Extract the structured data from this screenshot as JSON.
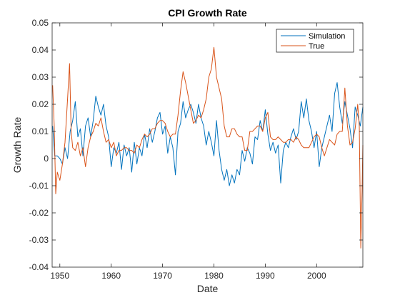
{
  "chart_data": {
    "type": "line",
    "title": "CPI Growth Rate",
    "xlabel": "Date",
    "ylabel": "Growth Rate",
    "xlim": [
      1948.5,
      2009.0
    ],
    "ylim": [
      -0.04,
      0.05
    ],
    "x_ticks": [
      1950,
      1960,
      1970,
      1980,
      1990,
      2000
    ],
    "y_ticks": [
      -0.04,
      -0.03,
      -0.02,
      -0.01,
      0,
      0.01,
      0.02,
      0.03,
      0.04,
      0.05
    ],
    "y_tick_labels": [
      "-0.04",
      "-0.03",
      "-0.02",
      "-0.01",
      "0",
      "0.01",
      "0.02",
      "0.03",
      "0.04",
      "0.05"
    ],
    "legend_position": "top-right",
    "grid": false,
    "series": [
      {
        "name": "Simulation",
        "color": "#0072BD",
        "points": [
          [
            1948.6,
            0.012
          ],
          [
            1949.0,
            0.001
          ],
          [
            1949.5,
            0.001
          ],
          [
            1950.0,
            0.0
          ],
          [
            1950.5,
            -0.002
          ],
          [
            1951.0,
            0.004
          ],
          [
            1951.5,
            0.0
          ],
          [
            1952.0,
            0.01
          ],
          [
            1952.5,
            0.014
          ],
          [
            1953.0,
            0.021
          ],
          [
            1953.5,
            0.008
          ],
          [
            1954.0,
            0.011
          ],
          [
            1954.5,
            0.001
          ],
          [
            1955.0,
            0.012
          ],
          [
            1955.5,
            0.015
          ],
          [
            1956.0,
            0.008
          ],
          [
            1956.5,
            0.014
          ],
          [
            1957.0,
            0.023
          ],
          [
            1957.5,
            0.019
          ],
          [
            1958.0,
            0.016
          ],
          [
            1958.5,
            0.02
          ],
          [
            1959.0,
            0.012
          ],
          [
            1959.5,
            0.008
          ],
          [
            1960.0,
            -0.003
          ],
          [
            1960.5,
            0.004
          ],
          [
            1961.0,
            0.002
          ],
          [
            1961.5,
            0.006
          ],
          [
            1962.0,
            -0.004
          ],
          [
            1962.5,
            0.005
          ],
          [
            1963.0,
            0.001
          ],
          [
            1963.5,
            0.004
          ],
          [
            1964.0,
            -0.005
          ],
          [
            1964.5,
            0.006
          ],
          [
            1965.0,
            -0.002
          ],
          [
            1965.5,
            0.004
          ],
          [
            1966.0,
            0.001
          ],
          [
            1966.5,
            0.009
          ],
          [
            1967.0,
            0.004
          ],
          [
            1967.5,
            0.011
          ],
          [
            1968.0,
            0.006
          ],
          [
            1968.5,
            0.01
          ],
          [
            1969.0,
            0.015
          ],
          [
            1969.5,
            0.017
          ],
          [
            1970.0,
            0.009
          ],
          [
            1970.5,
            0.012
          ],
          [
            1971.0,
            0.002
          ],
          [
            1971.5,
            0.008
          ],
          [
            1972.0,
            0.004
          ],
          [
            1972.5,
            -0.006
          ],
          [
            1973.0,
            0.01
          ],
          [
            1973.5,
            0.013
          ],
          [
            1974.0,
            0.021
          ],
          [
            1974.5,
            0.015
          ],
          [
            1975.0,
            0.018
          ],
          [
            1975.5,
            0.02
          ],
          [
            1976.0,
            0.017
          ],
          [
            1976.5,
            0.013
          ],
          [
            1977.0,
            0.02
          ],
          [
            1977.5,
            0.015
          ],
          [
            1978.0,
            0.012
          ],
          [
            1978.5,
            0.005
          ],
          [
            1979.0,
            0.01
          ],
          [
            1979.5,
            0.006
          ],
          [
            1980.0,
            0.001
          ],
          [
            1980.5,
            0.014
          ],
          [
            1981.0,
            0.003
          ],
          [
            1981.5,
            -0.004
          ],
          [
            1982.0,
            -0.008
          ],
          [
            1982.5,
            -0.004
          ],
          [
            1983.0,
            -0.01
          ],
          [
            1983.5,
            -0.006
          ],
          [
            1984.0,
            -0.009
          ],
          [
            1984.5,
            -0.004
          ],
          [
            1985.0,
            -0.006
          ],
          [
            1985.5,
            0.003
          ],
          [
            1986.0,
            -0.001
          ],
          [
            1986.5,
            0.004
          ],
          [
            1987.0,
            0.002
          ],
          [
            1987.5,
            -0.002
          ],
          [
            1988.0,
            0.008
          ],
          [
            1988.5,
            0.007
          ],
          [
            1989.0,
            0.014
          ],
          [
            1989.5,
            0.01
          ],
          [
            1990.0,
            0.018
          ],
          [
            1990.5,
            0.009
          ],
          [
            1991.0,
            0.003
          ],
          [
            1991.5,
            0.006
          ],
          [
            1992.0,
            0.002
          ],
          [
            1992.5,
            0.005
          ],
          [
            1993.0,
            -0.009
          ],
          [
            1993.5,
            0.003
          ],
          [
            1994.0,
            0.006
          ],
          [
            1994.5,
            0.004
          ],
          [
            1995.0,
            0.008
          ],
          [
            1995.5,
            0.011
          ],
          [
            1996.0,
            0.007
          ],
          [
            1996.5,
            0.01
          ],
          [
            1997.0,
            0.021
          ],
          [
            1997.5,
            0.015
          ],
          [
            1998.0,
            0.022
          ],
          [
            1998.5,
            0.014
          ],
          [
            1999.0,
            0.01
          ],
          [
            1999.5,
            0.004
          ],
          [
            2000.0,
            0.01
          ],
          [
            2000.5,
            -0.003
          ],
          [
            2001.0,
            0.004
          ],
          [
            2001.5,
            0.008
          ],
          [
            2002.0,
            0.012
          ],
          [
            2002.5,
            0.016
          ],
          [
            2003.0,
            0.01
          ],
          [
            2003.5,
            0.024
          ],
          [
            2004.0,
            0.028
          ],
          [
            2004.5,
            0.019
          ],
          [
            2005.0,
            0.013
          ],
          [
            2005.5,
            0.021
          ],
          [
            2006.0,
            0.016
          ],
          [
            2006.5,
            0.011
          ],
          [
            2007.0,
            0.004
          ],
          [
            2007.5,
            0.019
          ],
          [
            2008.0,
            0.016
          ],
          [
            2008.5,
            0.012
          ],
          [
            2009.0,
            0.019
          ]
        ]
      },
      {
        "name": "True",
        "color": "#D95319",
        "points": [
          [
            1948.6,
            0.027
          ],
          [
            1948.9,
            0.012
          ],
          [
            1949.2,
            -0.013
          ],
          [
            1949.5,
            -0.005
          ],
          [
            1950.0,
            -0.008
          ],
          [
            1950.5,
            -0.002
          ],
          [
            1951.0,
            0.006
          ],
          [
            1951.5,
            0.022
          ],
          [
            1951.9,
            0.035
          ],
          [
            1952.2,
            0.01
          ],
          [
            1952.5,
            0.004
          ],
          [
            1953.0,
            0.003
          ],
          [
            1953.5,
            0.006
          ],
          [
            1954.0,
            0.001
          ],
          [
            1954.5,
            0.004
          ],
          [
            1955.0,
            -0.003
          ],
          [
            1955.5,
            0.004
          ],
          [
            1956.0,
            0.008
          ],
          [
            1956.5,
            0.01
          ],
          [
            1957.0,
            0.013
          ],
          [
            1957.5,
            0.012
          ],
          [
            1958.0,
            0.015
          ],
          [
            1958.5,
            0.01
          ],
          [
            1959.0,
            0.006
          ],
          [
            1959.5,
            0.007
          ],
          [
            1960.0,
            0.004
          ],
          [
            1960.5,
            0.006
          ],
          [
            1961.0,
            0.001
          ],
          [
            1961.5,
            0.003
          ],
          [
            1962.0,
            0.003
          ],
          [
            1962.5,
            0.004
          ],
          [
            1963.0,
            0.004
          ],
          [
            1963.5,
            0.003
          ],
          [
            1964.0,
            0.003
          ],
          [
            1964.5,
            0.002
          ],
          [
            1965.0,
            0.005
          ],
          [
            1965.5,
            0.004
          ],
          [
            1966.0,
            0.007
          ],
          [
            1966.5,
            0.009
          ],
          [
            1967.0,
            0.008
          ],
          [
            1967.5,
            0.009
          ],
          [
            1968.0,
            0.011
          ],
          [
            1968.5,
            0.011
          ],
          [
            1969.0,
            0.013
          ],
          [
            1969.5,
            0.014
          ],
          [
            1970.0,
            0.014
          ],
          [
            1970.5,
            0.013
          ],
          [
            1971.0,
            0.01
          ],
          [
            1971.5,
            0.008
          ],
          [
            1972.0,
            0.009
          ],
          [
            1972.5,
            0.009
          ],
          [
            1973.0,
            0.016
          ],
          [
            1973.5,
            0.025
          ],
          [
            1974.0,
            0.032
          ],
          [
            1974.5,
            0.028
          ],
          [
            1975.0,
            0.023
          ],
          [
            1975.5,
            0.018
          ],
          [
            1976.0,
            0.013
          ],
          [
            1976.5,
            0.014
          ],
          [
            1977.0,
            0.016
          ],
          [
            1977.5,
            0.015
          ],
          [
            1978.0,
            0.018
          ],
          [
            1978.5,
            0.022
          ],
          [
            1979.0,
            0.03
          ],
          [
            1979.5,
            0.033
          ],
          [
            1980.0,
            0.041
          ],
          [
            1980.5,
            0.03
          ],
          [
            1981.0,
            0.026
          ],
          [
            1981.5,
            0.022
          ],
          [
            1982.0,
            0.012
          ],
          [
            1982.5,
            0.008
          ],
          [
            1983.0,
            0.008
          ],
          [
            1983.5,
            0.011
          ],
          [
            1984.0,
            0.011
          ],
          [
            1984.5,
            0.009
          ],
          [
            1985.0,
            0.008
          ],
          [
            1985.5,
            0.008
          ],
          [
            1986.0,
            0.003
          ],
          [
            1986.5,
            0.003
          ],
          [
            1987.0,
            0.01
          ],
          [
            1987.5,
            0.01
          ],
          [
            1988.0,
            0.011
          ],
          [
            1988.5,
            0.012
          ],
          [
            1989.0,
            0.012
          ],
          [
            1989.5,
            0.01
          ],
          [
            1990.0,
            0.015
          ],
          [
            1990.5,
            0.017
          ],
          [
            1991.0,
            0.008
          ],
          [
            1991.5,
            0.007
          ],
          [
            1992.0,
            0.007
          ],
          [
            1992.5,
            0.008
          ],
          [
            1993.0,
            0.007
          ],
          [
            1993.5,
            0.006
          ],
          [
            1994.0,
            0.006
          ],
          [
            1994.5,
            0.007
          ],
          [
            1995.0,
            0.007
          ],
          [
            1995.5,
            0.006
          ],
          [
            1996.0,
            0.008
          ],
          [
            1996.5,
            0.007
          ],
          [
            1997.0,
            0.005
          ],
          [
            1997.5,
            0.004
          ],
          [
            1998.0,
            0.004
          ],
          [
            1998.5,
            0.004
          ],
          [
            1999.0,
            0.006
          ],
          [
            1999.5,
            0.008
          ],
          [
            2000.0,
            0.009
          ],
          [
            2000.5,
            0.008
          ],
          [
            2001.0,
            0.004
          ],
          [
            2001.5,
            0.001
          ],
          [
            2002.0,
            0.004
          ],
          [
            2002.5,
            0.007
          ],
          [
            2003.0,
            0.006
          ],
          [
            2003.5,
            0.005
          ],
          [
            2004.0,
            0.009
          ],
          [
            2004.5,
            0.01
          ],
          [
            2005.0,
            0.01
          ],
          [
            2005.5,
            0.026
          ],
          [
            2006.0,
            0.012
          ],
          [
            2006.5,
            0.005
          ],
          [
            2007.0,
            0.006
          ],
          [
            2007.5,
            0.011
          ],
          [
            2008.0,
            0.02
          ],
          [
            2008.3,
            0.012
          ],
          [
            2008.6,
            -0.033
          ],
          [
            2008.85,
            -0.012
          ],
          [
            2009.0,
            0.005
          ]
        ]
      }
    ]
  }
}
